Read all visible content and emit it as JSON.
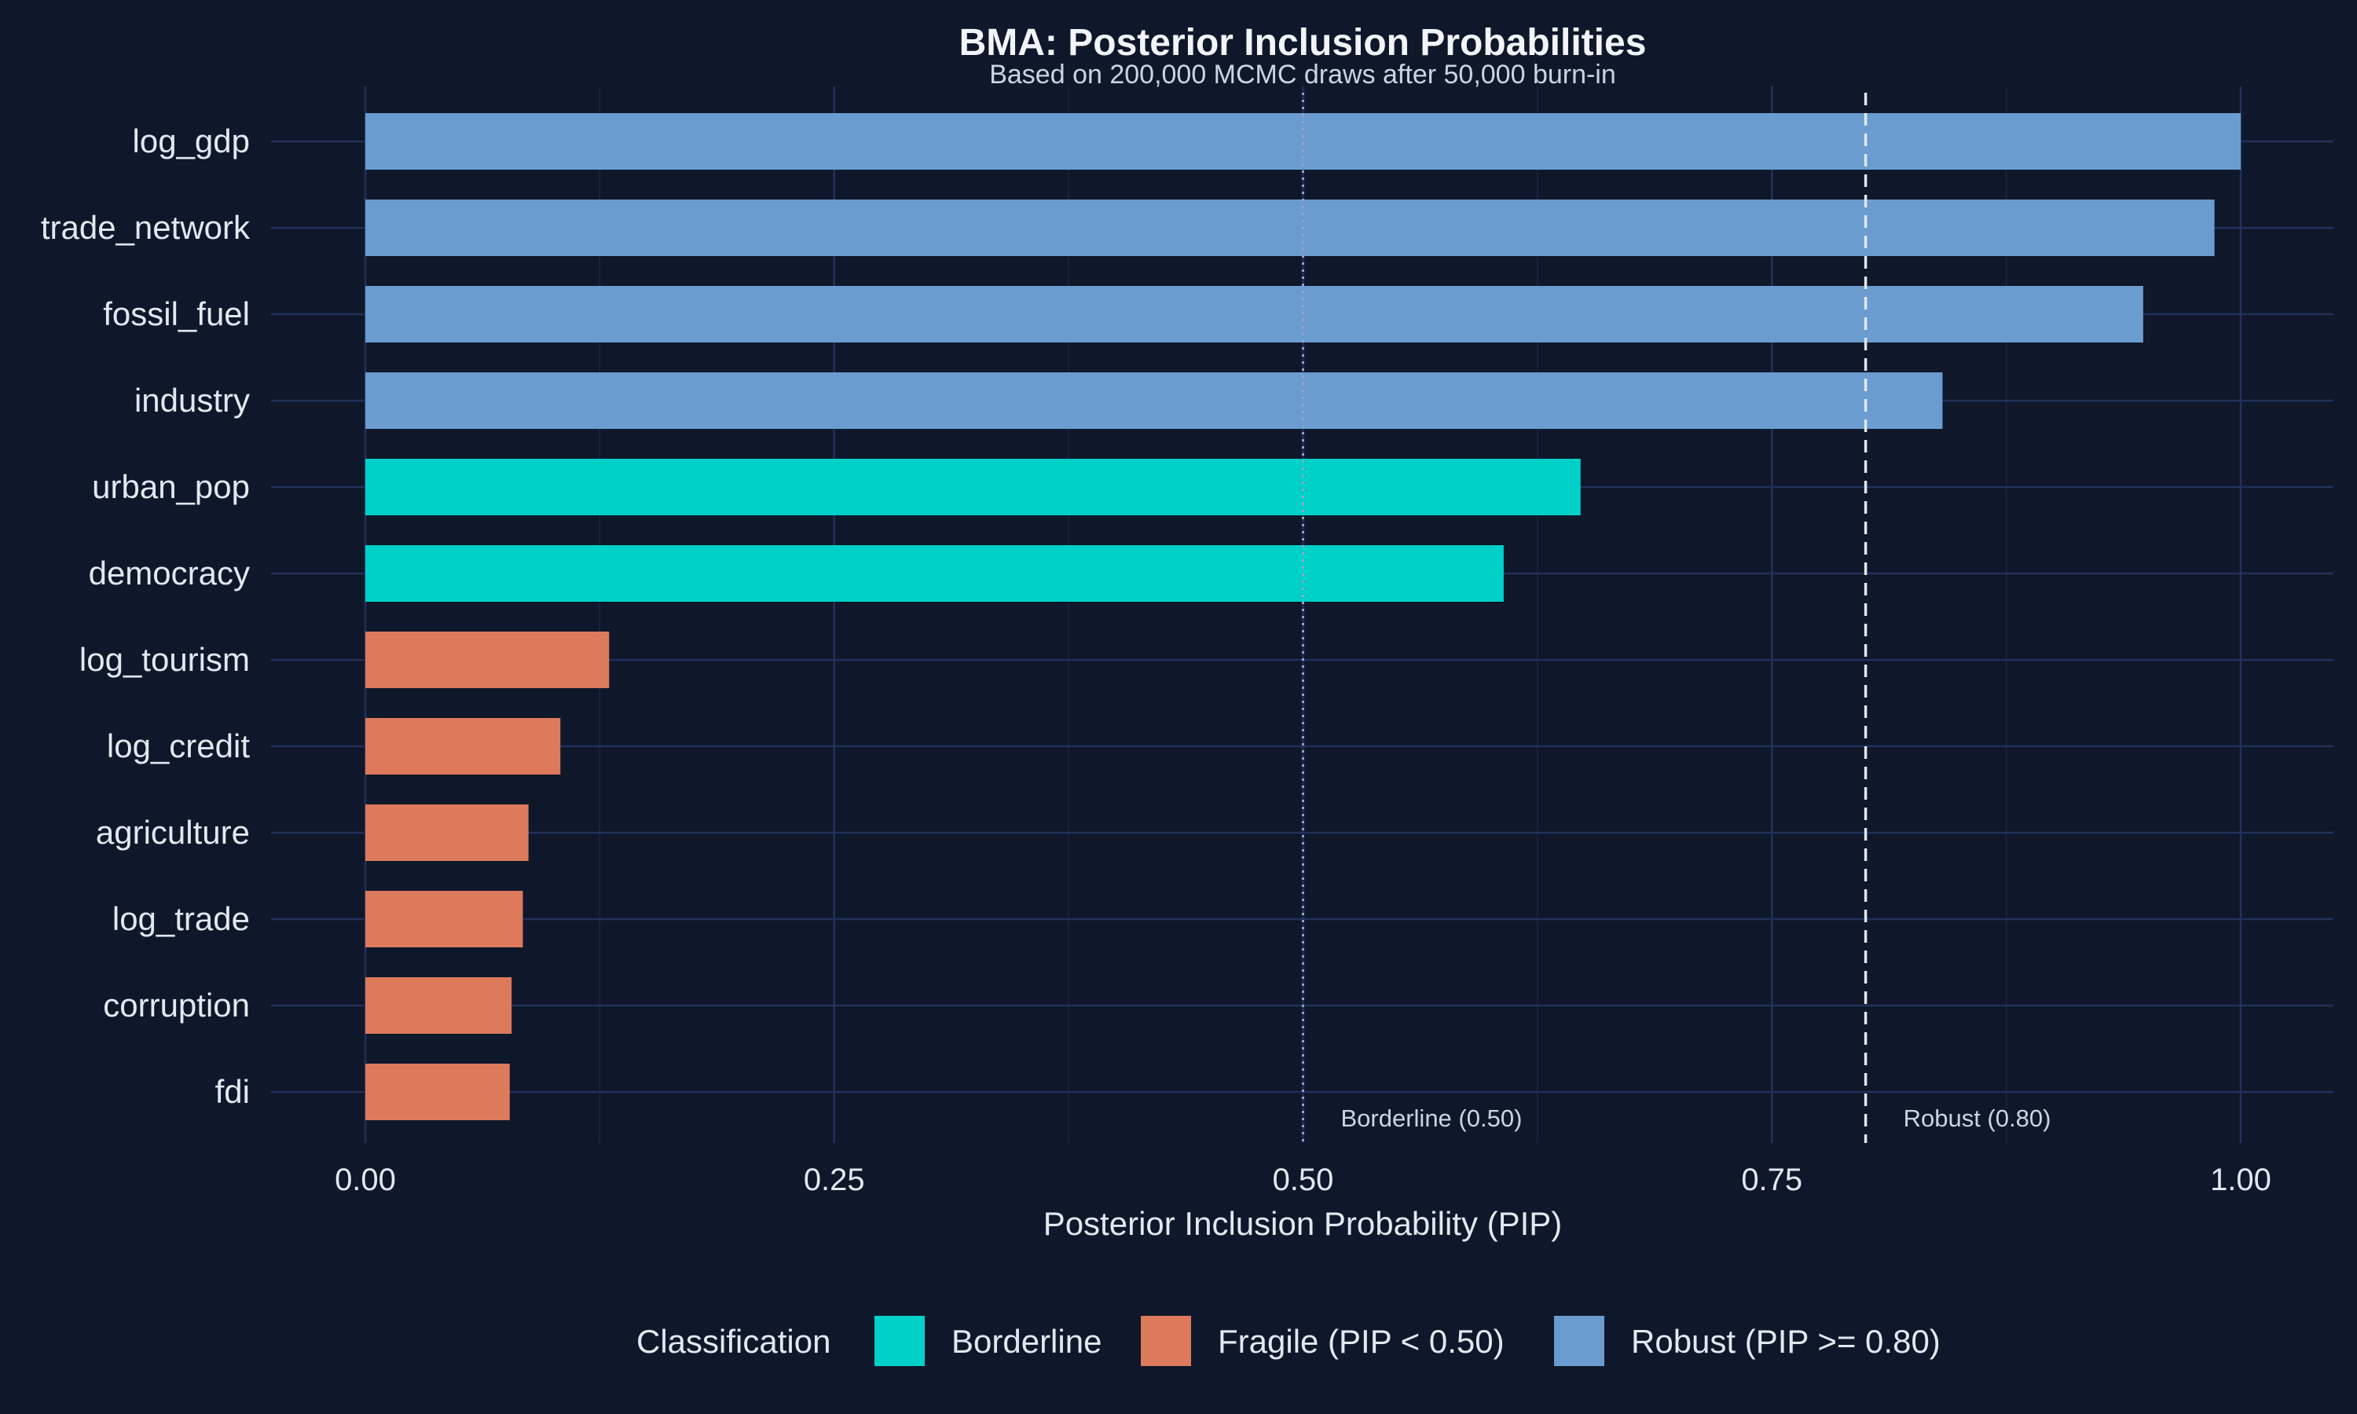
{
  "chart_data": {
    "type": "bar",
    "orientation": "horizontal",
    "title": "BMA: Posterior Inclusion Probabilities",
    "subtitle": "Based on 200,000 MCMC draws after 50,000 burn-in",
    "xlabel": "Posterior Inclusion Probability (PIP)",
    "ylabel": "",
    "xlim": [
      0,
      1
    ],
    "x_ticks": [
      0,
      0.25,
      0.5,
      0.75,
      1.0
    ],
    "x_tick_labels": [
      "0.00",
      "0.25",
      "0.50",
      "0.75",
      "1.00"
    ],
    "grid": true,
    "categories": [
      "log_gdp",
      "trade_network",
      "fossil_fuel",
      "industry",
      "urban_pop",
      "democracy",
      "log_tourism",
      "log_credit",
      "agriculture",
      "log_trade",
      "corruption",
      "fdi"
    ],
    "values": [
      1.0,
      0.986,
      0.948,
      0.841,
      0.648,
      0.607,
      0.13,
      0.104,
      0.087,
      0.084,
      0.078,
      0.077
    ],
    "classes": [
      "Robust (PIP >= 0.80)",
      "Robust (PIP >= 0.80)",
      "Robust (PIP >= 0.80)",
      "Robust (PIP >= 0.80)",
      "Borderline",
      "Borderline",
      "Fragile (PIP < 0.50)",
      "Fragile (PIP < 0.50)",
      "Fragile (PIP < 0.50)",
      "Fragile (PIP < 0.50)",
      "Fragile (PIP < 0.50)",
      "Fragile (PIP < 0.50)"
    ],
    "reference_lines": [
      {
        "value": 0.5,
        "label": "Borderline (0.50)",
        "style": "dotted"
      },
      {
        "value": 0.8,
        "label": "Robust (0.80)",
        "style": "dashed"
      }
    ],
    "legend": {
      "title": "Classification",
      "placement": "bottom",
      "entries": [
        {
          "label": "Borderline",
          "color": "#00d1c8"
        },
        {
          "label": "Fragile (PIP < 0.50)",
          "color": "#dc7a5b"
        },
        {
          "label": "Robust (PIP >= 0.80)",
          "color": "#6a9ccf"
        }
      ]
    },
    "colors": {
      "background": "#0f172a",
      "grid": "#1e2b52",
      "text": "#e2e8f0"
    }
  }
}
